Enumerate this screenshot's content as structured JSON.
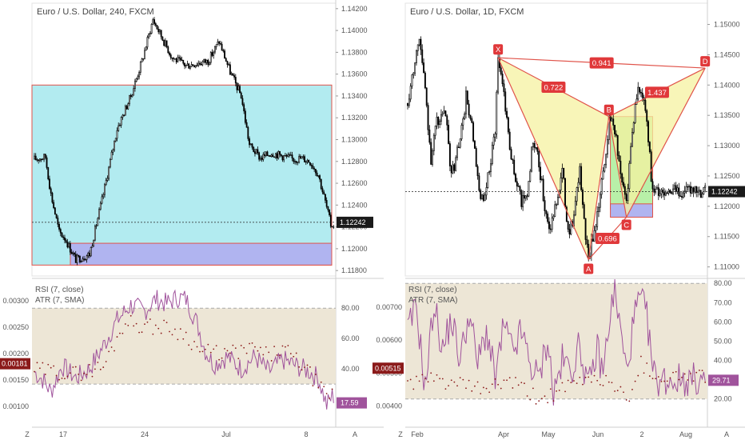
{
  "colors": {
    "bull": "#ffffff",
    "bear": "#000000",
    "rsi": "#a0539c",
    "atr": "#8b1a1a",
    "zone_cyan": "#b2ebf0",
    "zone_purple": "#b0b4f0",
    "zone_border": "#e0534a",
    "band": "#ede6d6",
    "pattern_fill": "#f6f2a0",
    "pattern_line": "#e0534a",
    "label_bg": "#e0383a",
    "green_zone": "#b8f0a8"
  },
  "chart_data": [
    {
      "type": "candlestick",
      "title": "Euro / U.S. Dollar, 240, FXCM",
      "ylim": [
        1.1175,
        1.1425
      ],
      "y_ticks": [
        "1.14200",
        "1.14000",
        "1.13800",
        "1.13600",
        "1.13400",
        "1.13200",
        "1.13000",
        "1.12800",
        "1.12600",
        "1.12400",
        "1.12200",
        "1.12000",
        "1.11800"
      ],
      "x_ticks": [
        "17",
        "24",
        "Jul",
        "8"
      ],
      "last_price": "1.12242",
      "anchors": [
        [
          0,
          1.1282
        ],
        [
          8,
          1.1284
        ],
        [
          12,
          1.125
        ],
        [
          18,
          1.1215
        ],
        [
          22,
          1.121
        ],
        [
          30,
          1.119
        ],
        [
          40,
          1.1195
        ],
        [
          50,
          1.125
        ],
        [
          60,
          1.131
        ],
        [
          70,
          1.134
        ],
        [
          78,
          1.1372
        ],
        [
          86,
          1.141
        ],
        [
          94,
          1.139
        ],
        [
          100,
          1.1375
        ],
        [
          110,
          1.1368
        ],
        [
          118,
          1.137
        ],
        [
          126,
          1.1372
        ],
        [
          134,
          1.139
        ],
        [
          142,
          1.1362
        ],
        [
          150,
          1.134
        ],
        [
          156,
          1.1295
        ],
        [
          164,
          1.1283
        ],
        [
          172,
          1.1288
        ],
        [
          180,
          1.1285
        ],
        [
          188,
          1.1282
        ],
        [
          194,
          1.1283
        ],
        [
          200,
          1.128
        ],
        [
          206,
          1.1268
        ],
        [
          212,
          1.1238
        ],
        [
          215,
          1.1222
        ]
      ],
      "zones": [
        {
          "name": "resistance",
          "y0": 1.135,
          "y1": 1.1185
        },
        {
          "name": "support",
          "y0": 1.1205,
          "y1": 1.1185
        }
      ],
      "indicator": {
        "rsi_label": "RSI (7, close)",
        "atr_label": "ATR (7, SMA)",
        "left_ticks": [
          "0.00300",
          "0.00250",
          "0.00200",
          "0.00150",
          "0.00100"
        ],
        "left_range": [
          0.00085,
          0.00335
        ],
        "right_ticks": [
          "80.00",
          "60.00",
          "40.00"
        ],
        "band": [
          30,
          80
        ],
        "atr_value": "0.00181",
        "rsi_value": "17.59",
        "rsi_anchors": [
          [
            0,
            38
          ],
          [
            6,
            33
          ],
          [
            12,
            25
          ],
          [
            20,
            42
          ],
          [
            30,
            34
          ],
          [
            40,
            40
          ],
          [
            50,
            55
          ],
          [
            60,
            72
          ],
          [
            70,
            82
          ],
          [
            80,
            78
          ],
          [
            88,
            86
          ],
          [
            96,
            83
          ],
          [
            104,
            87
          ],
          [
            110,
            86
          ],
          [
            118,
            70
          ],
          [
            124,
            52
          ],
          [
            130,
            43
          ],
          [
            140,
            48
          ],
          [
            150,
            40
          ],
          [
            160,
            48
          ],
          [
            170,
            38
          ],
          [
            180,
            46
          ],
          [
            190,
            42
          ],
          [
            200,
            38
          ],
          [
            206,
            34
          ],
          [
            212,
            16
          ],
          [
            216,
            22
          ]
        ],
        "atr_anchors": [
          [
            0,
            0.0017
          ],
          [
            30,
            0.00162
          ],
          [
            50,
            0.00175
          ],
          [
            66,
            0.00262
          ],
          [
            80,
            0.00252
          ],
          [
            96,
            0.0025
          ],
          [
            110,
            0.00235
          ],
          [
            120,
            0.00205
          ],
          [
            140,
            0.002
          ],
          [
            160,
            0.0021
          ],
          [
            170,
            0.00195
          ],
          [
            180,
            0.0021
          ],
          [
            196,
            0.00175
          ],
          [
            206,
            0.0014
          ],
          [
            214,
            0.00108
          ],
          [
            218,
            0.00172
          ]
        ]
      }
    },
    {
      "type": "candlestick",
      "title": "Euro / U.S. Dollar, 1D, FXCM",
      "ylim": [
        1.1085,
        1.1535
      ],
      "y_ticks": [
        "1.15000",
        "1.14500",
        "1.14000",
        "1.13500",
        "1.13000",
        "1.12500",
        "1.12000",
        "1.11500",
        "1.11000"
      ],
      "x_ticks": [
        "Feb",
        "Apr",
        "May",
        "Jun",
        "2",
        "Aug"
      ],
      "last_price": "1.12242",
      "anchors": [
        [
          0,
          1.137
        ],
        [
          4,
          1.143
        ],
        [
          8,
          1.148
        ],
        [
          12,
          1.139
        ],
        [
          16,
          1.128
        ],
        [
          20,
          1.134
        ],
        [
          26,
          1.135
        ],
        [
          30,
          1.125
        ],
        [
          36,
          1.131
        ],
        [
          40,
          1.138
        ],
        [
          44,
          1.133
        ],
        [
          48,
          1.124
        ],
        [
          52,
          1.12
        ],
        [
          56,
          1.126
        ],
        [
          60,
          1.133
        ],
        [
          62,
          1.1445
        ],
        [
          66,
          1.139
        ],
        [
          70,
          1.13
        ],
        [
          74,
          1.124
        ],
        [
          78,
          1.121
        ],
        [
          82,
          1.122
        ],
        [
          86,
          1.131
        ],
        [
          90,
          1.127
        ],
        [
          94,
          1.12
        ],
        [
          98,
          1.116
        ],
        [
          102,
          1.121
        ],
        [
          106,
          1.126
        ],
        [
          110,
          1.116
        ],
        [
          114,
          1.118
        ],
        [
          118,
          1.126
        ],
        [
          122,
          1.115
        ],
        [
          124,
          1.111
        ],
        [
          128,
          1.116
        ],
        [
          132,
          1.122
        ],
        [
          136,
          1.129
        ],
        [
          138,
          1.135
        ],
        [
          142,
          1.133
        ],
        [
          146,
          1.125
        ],
        [
          150,
          1.121
        ],
        [
          154,
          1.133
        ],
        [
          158,
          1.14
        ],
        [
          162,
          1.137
        ],
        [
          164,
          1.135
        ],
        [
          166,
          1.128
        ],
        [
          168,
          1.1224
        ]
      ],
      "x_points": {
        "X": 62,
        "A": 124,
        "B": 138,
        "C": 150,
        "D": 204
      },
      "y_points": {
        "X": 1.1445,
        "A": 1.1112,
        "B": 1.1348,
        "C": 1.1182,
        "D": 1.1428
      },
      "ratios": {
        "XB": "0.722",
        "XD": "0.941",
        "AC": "0.696",
        "BD": "1.437"
      },
      "point_labels": [
        "X",
        "A",
        "B",
        "C",
        "D"
      ],
      "zones": [
        {
          "name": "green",
          "x0": 139,
          "x1": 168,
          "y0": 1.1348,
          "y1": 1.1195
        },
        {
          "name": "purple",
          "x0": 139,
          "x1": 168,
          "y0": 1.1204,
          "y1": 1.1182
        }
      ],
      "indicator": {
        "rsi_label": "RSI (7, close)",
        "atr_label": "ATR (7, SMA)",
        "left_ticks": [
          "0.00700",
          "0.00600",
          "0.00500",
          "0.00400"
        ],
        "left_range": [
          0.00375,
          0.00775
        ],
        "right_ticks": [
          "80.00",
          "70.00",
          "60.00",
          "50.00",
          "40.00",
          "30.00",
          "20.00"
        ],
        "band": [
          20,
          80
        ],
        "atr_value": "0.00515",
        "rsi_value": "29.71",
        "rsi_anchors": [
          [
            0,
            55
          ],
          [
            6,
            68
          ],
          [
            12,
            25
          ],
          [
            18,
            70
          ],
          [
            24,
            45
          ],
          [
            30,
            62
          ],
          [
            36,
            40
          ],
          [
            42,
            65
          ],
          [
            48,
            38
          ],
          [
            54,
            56
          ],
          [
            60,
            30
          ],
          [
            66,
            58
          ],
          [
            72,
            44
          ],
          [
            78,
            55
          ],
          [
            84,
            38
          ],
          [
            90,
            30
          ],
          [
            96,
            52
          ],
          [
            100,
            22
          ],
          [
            106,
            40
          ],
          [
            112,
            35
          ],
          [
            118,
            48
          ],
          [
            124,
            25
          ],
          [
            130,
            46
          ],
          [
            134,
            33
          ],
          [
            138,
            60
          ],
          [
            142,
            76
          ],
          [
            146,
            55
          ],
          [
            150,
            34
          ],
          [
            156,
            65
          ],
          [
            160,
            72
          ],
          [
            164,
            62
          ],
          [
            168,
            36
          ],
          [
            170,
            30
          ]
        ],
        "atr_anchors": [
          [
            0,
            0.0047
          ],
          [
            20,
            0.0048
          ],
          [
            50,
            0.0045
          ],
          [
            70,
            0.00475
          ],
          [
            90,
            0.0042
          ],
          [
            110,
            0.00455
          ],
          [
            124,
            0.00485
          ],
          [
            140,
            0.00475
          ],
          [
            150,
            0.00415
          ],
          [
            160,
            0.0053
          ],
          [
            170,
            0.0049
          ]
        ]
      }
    }
  ],
  "axis_letters": {
    "z": "Z",
    "a": "A"
  }
}
